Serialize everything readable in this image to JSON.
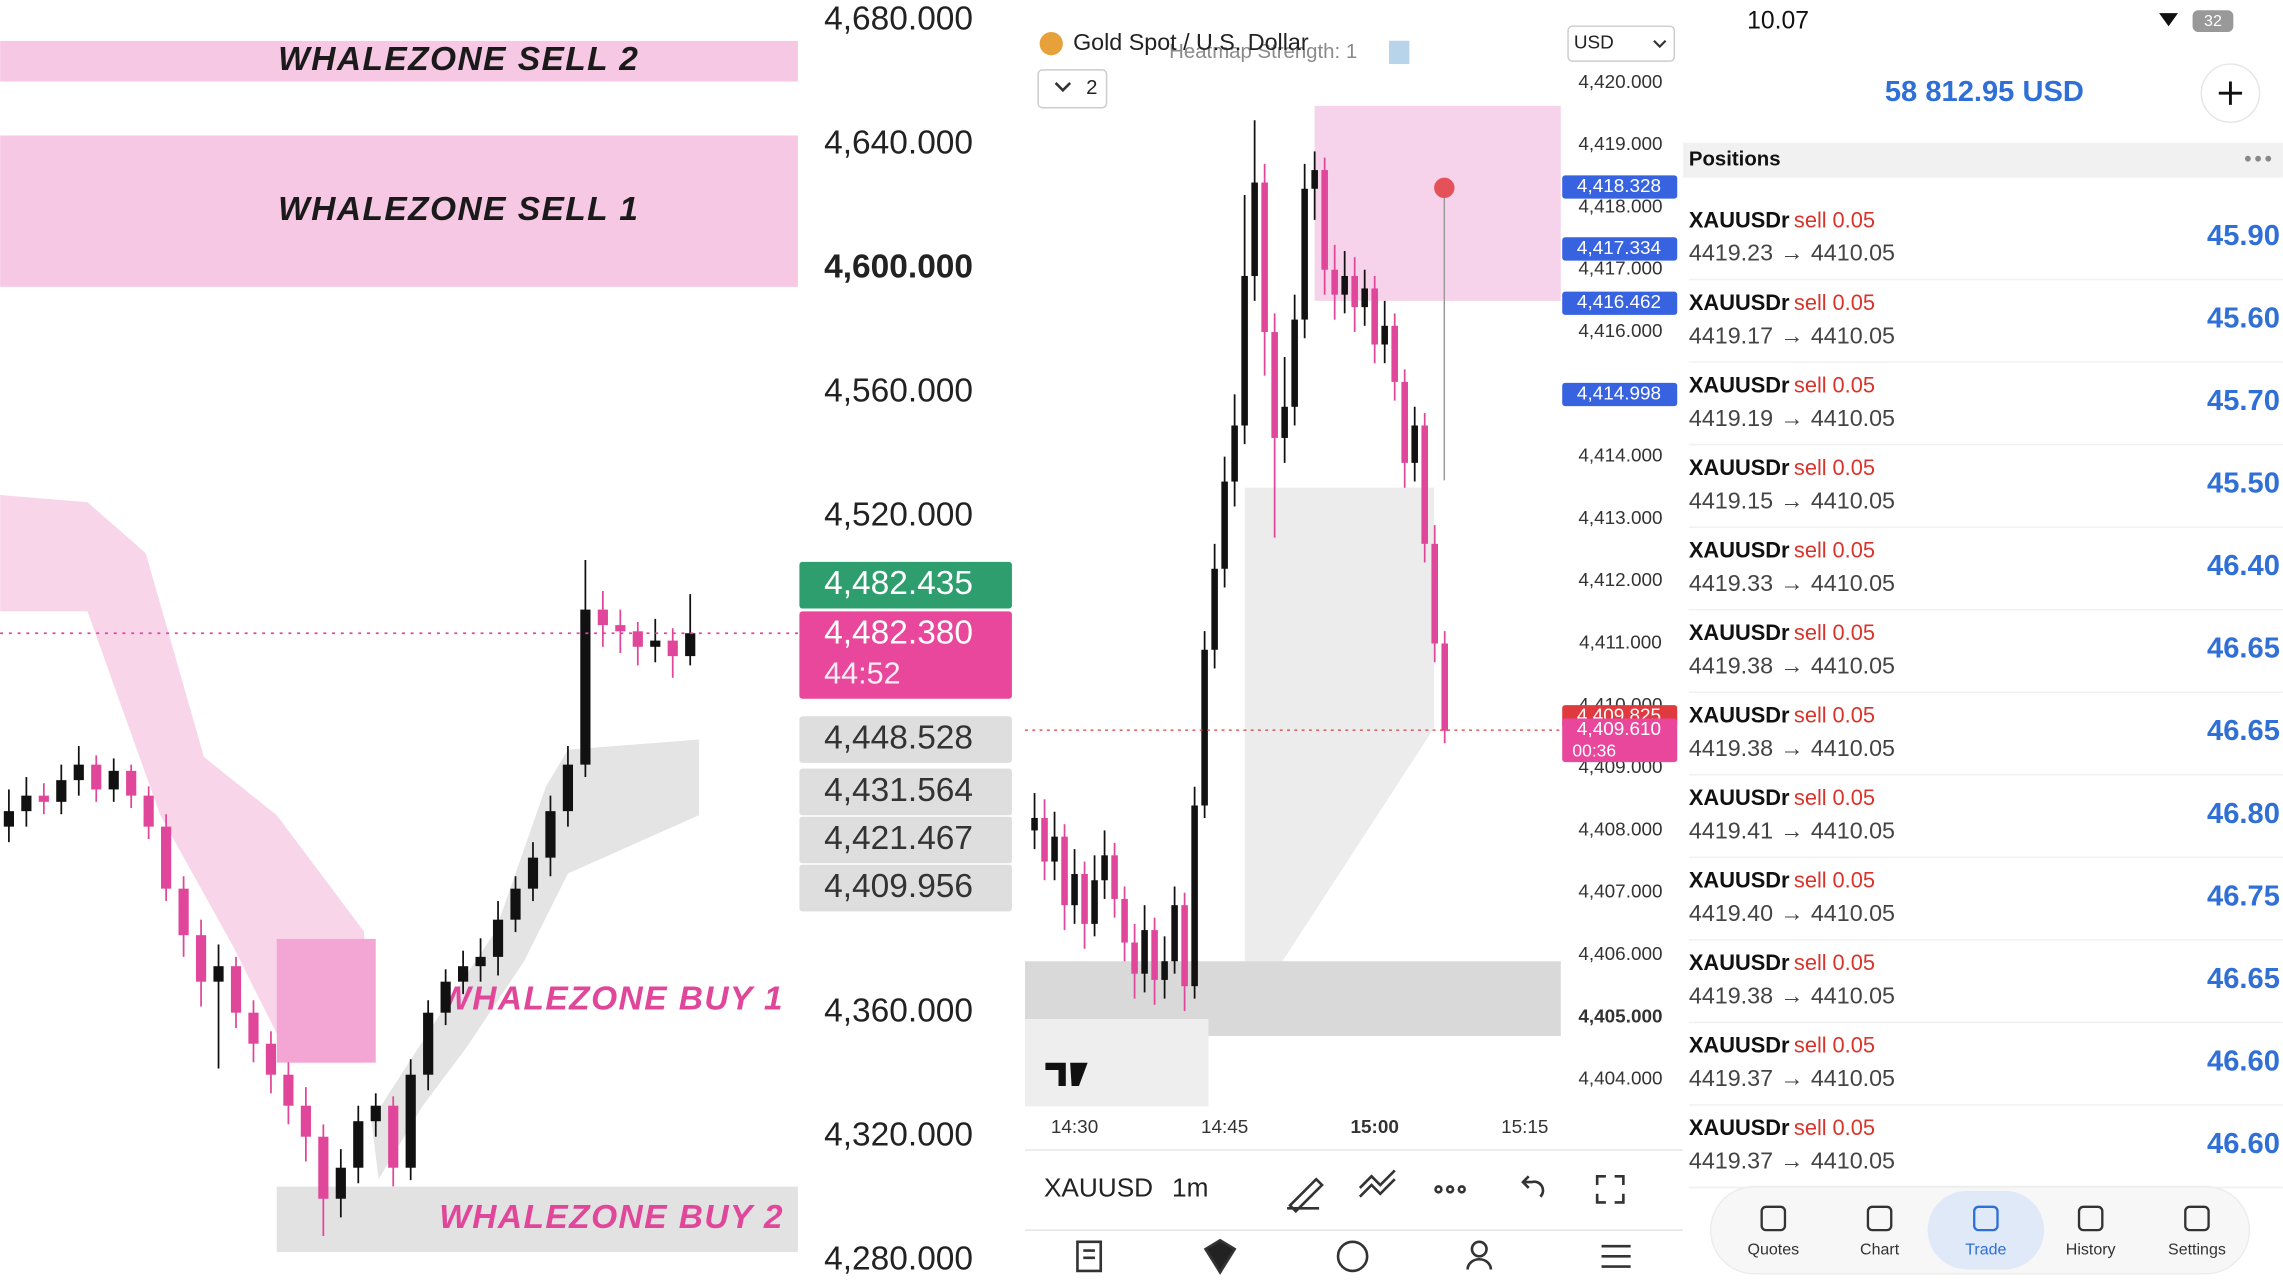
{
  "chart_data": [
    {
      "type": "candlestick",
      "ylim": [
        4272.5,
        4686.6
      ],
      "yticks": [
        {
          "value": 4680,
          "label": "4,680.000"
        },
        {
          "value": 4640,
          "label": "4,640.000"
        },
        {
          "value": 4600,
          "label": "4,600.000"
        },
        {
          "value": 4560,
          "label": "4,560.000"
        },
        {
          "value": 4520,
          "label": "4,520.000"
        },
        {
          "value": 4360,
          "label": "4,360.000"
        },
        {
          "value": 4320,
          "label": "4,320.000"
        },
        {
          "value": 4280,
          "label": "4,280.000"
        }
      ],
      "emphasized_ytick": 2,
      "up_color": "#111111",
      "down_color": "#e0479a",
      "open": [
        4420,
        4425,
        4430,
        4428,
        4435,
        4440,
        4432,
        4438,
        4430,
        4420,
        4400,
        4385,
        4370,
        4375,
        4360,
        4350,
        4340,
        4330,
        4320,
        4300,
        4310,
        4325,
        4330,
        4310,
        4340,
        4360,
        4370,
        4375,
        4378,
        4390,
        4400,
        4410,
        4425,
        4440,
        4490,
        4485,
        4483,
        4478,
        4480,
        4475
      ],
      "high": [
        4432,
        4436,
        4434,
        4440,
        4446,
        4443,
        4442,
        4440,
        4433,
        4424,
        4404,
        4390,
        4382,
        4378,
        4364,
        4354,
        4344,
        4336,
        4324,
        4316,
        4330,
        4334,
        4333,
        4345,
        4364,
        4374,
        4380,
        4384,
        4396,
        4404,
        4415,
        4430,
        4446,
        4506,
        4496,
        4490,
        4486,
        4487,
        4484,
        4495
      ],
      "low": [
        4415,
        4420,
        4424,
        4424,
        4430,
        4428,
        4428,
        4426,
        4416,
        4396,
        4378,
        4362,
        4342,
        4355,
        4344,
        4334,
        4324,
        4312,
        4288,
        4294,
        4305,
        4320,
        4304,
        4306,
        4335,
        4356,
        4366,
        4370,
        4372,
        4386,
        4396,
        4404,
        4420,
        4436,
        4478,
        4476,
        4472,
        4473,
        4468,
        4472
      ],
      "close": [
        4425,
        4430,
        4428,
        4435,
        4440,
        4432,
        4438,
        4430,
        4420,
        4400,
        4385,
        4370,
        4375,
        4360,
        4350,
        4340,
        4330,
        4320,
        4300,
        4310,
        4325,
        4330,
        4310,
        4340,
        4360,
        4370,
        4375,
        4378,
        4390,
        4400,
        4410,
        4425,
        4440,
        4490,
        4485,
        4483,
        4478,
        4480,
        4475,
        4482.38
      ],
      "zones": [
        {
          "label": "WHALEZONE SELL 2",
          "top": 4673.4,
          "bottom": 4660.3,
          "color": "#f7c8e4",
          "label_color": "#1a1a1a"
        },
        {
          "label": "WHALEZONE SELL 1",
          "top": 4642.9,
          "bottom": 4594.1,
          "color": "#f7c8e4",
          "label_color": "#1a1a1a"
        },
        {
          "label": "WHALEZONE BUY 1",
          "top": 4383.8,
          "bottom": 4343.9,
          "start": 16,
          "end": 21,
          "color": "#f3a6d3",
          "label_color": "#e0479a"
        },
        {
          "label": "WHALEZONE BUY 2",
          "top": 4303.9,
          "bottom": 4282.8,
          "start": 16,
          "color": "#e2e2e2",
          "label_color": "#e0479a"
        }
      ],
      "price_tags": [
        {
          "value": 4482.435,
          "label": "4,482.435",
          "color": "#2e9e6e",
          "text_color": "#ffffff"
        },
        {
          "value": 4482.38,
          "label": "4,482.380",
          "countdown": "44:52",
          "color": "#e8479c",
          "text_color": "#ffffff"
        },
        {
          "value": 4448.528,
          "label": "4,448.528",
          "color": "#dedede",
          "text_color": "#333333"
        },
        {
          "value": 4431.564,
          "label": "4,431.564",
          "color": "#dedede",
          "text_color": "#333333"
        },
        {
          "value": 4421.467,
          "label": "4,421.467",
          "color": "#dedede",
          "text_color": "#333333"
        },
        {
          "value": 4409.956,
          "label": "4,409.956",
          "color": "#dedede",
          "text_color": "#333333"
        }
      ]
    },
    {
      "type": "candlestick",
      "title": "Gold Spot / U.S. Dollar",
      "subtitle": "Heatmap Strength: 1",
      "currency": "USD",
      "layout_count": 2,
      "symbol": "XAUUSD",
      "interval": "1m",
      "ylim": [
        4403.57,
        4421.33
      ],
      "xlim": [
        865.05,
        918.6
      ],
      "yticks": [
        {
          "value": 4420,
          "label": "4,420.000"
        },
        {
          "value": 4419,
          "label": "4,419.000"
        },
        {
          "value": 4418,
          "label": "4,418.000"
        },
        {
          "value": 4417,
          "label": "4,417.000"
        },
        {
          "value": 4416,
          "label": "4,416.000"
        },
        {
          "value": 4415,
          "label": "4,415.000"
        },
        {
          "value": 4414,
          "label": "4,414.000"
        },
        {
          "value": 4413,
          "label": "4,413.000"
        },
        {
          "value": 4412,
          "label": "4,412.000"
        },
        {
          "value": 4411,
          "label": "4,411.000"
        },
        {
          "value": 4410,
          "label": "4,410.000"
        },
        {
          "value": 4409,
          "label": "4,409.000"
        },
        {
          "value": 4408,
          "label": "4,408.000"
        },
        {
          "value": 4407,
          "label": "4,407.000"
        },
        {
          "value": 4406,
          "label": "4,406.000"
        },
        {
          "value": 4405,
          "label": "4,405.000"
        },
        {
          "value": 4404,
          "label": "4,404.000"
        }
      ],
      "emphasized_ytick": 15,
      "xticks": [
        {
          "value": 870,
          "label": "14:30"
        },
        {
          "value": 885,
          "label": "14:45"
        },
        {
          "value": 900,
          "label": "15:00"
        },
        {
          "value": 915,
          "label": "15:15"
        }
      ],
      "emphasized_xtick": 2,
      "up_color": "#111111",
      "down_color": "#e0479a",
      "x": [
        866,
        867,
        868,
        869,
        870,
        871,
        872,
        873,
        874,
        875,
        876,
        877,
        878,
        879,
        880,
        881,
        882,
        883,
        884,
        885,
        886,
        887,
        888,
        889,
        890,
        891,
        892,
        893,
        894,
        895,
        896,
        897,
        898,
        899,
        900,
        901,
        902,
        903,
        904,
        905,
        906,
        907
      ],
      "open": [
        4408.0,
        4408.2,
        4407.5,
        4407.9,
        4406.8,
        4407.3,
        4406.5,
        4407.2,
        4407.6,
        4406.9,
        4406.2,
        4405.7,
        4406.4,
        4405.6,
        4405.9,
        4406.8,
        4405.5,
        4408.4,
        4410.9,
        4412.2,
        4413.6,
        4414.5,
        4416.9,
        4418.4,
        4416.0,
        4414.3,
        4414.8,
        4416.2,
        4418.3,
        4418.6,
        4417.0,
        4416.6,
        4416.9,
        4416.4,
        4416.7,
        4415.8,
        4416.1,
        4415.2,
        4413.9,
        4414.5,
        4412.6,
        4411.0
      ],
      "high": [
        4408.6,
        4408.5,
        4408.3,
        4408.1,
        4407.7,
        4407.5,
        4407.6,
        4408.0,
        4407.8,
        4407.1,
        4406.5,
        4406.8,
        4406.6,
        4406.3,
        4407.1,
        4407.0,
        4408.7,
        4411.2,
        4412.6,
        4414.0,
        4415.0,
        4418.2,
        4419.4,
        4418.7,
        4416.3,
        4415.6,
        4416.6,
        4418.7,
        4418.9,
        4418.8,
        4417.4,
        4417.3,
        4417.2,
        4417.0,
        4416.9,
        4416.5,
        4416.3,
        4415.4,
        4414.8,
        4414.7,
        4412.9,
        4411.2
      ],
      "low": [
        4407.7,
        4407.2,
        4407.2,
        4406.4,
        4406.5,
        4406.1,
        4406.3,
        4406.9,
        4406.6,
        4405.9,
        4405.3,
        4405.4,
        4405.2,
        4405.3,
        4405.7,
        4405.1,
        4405.3,
        4408.2,
        4410.6,
        4411.9,
        4413.2,
        4414.2,
        4416.5,
        4415.3,
        4412.7,
        4413.9,
        4414.5,
        4415.9,
        4417.8,
        4416.6,
        4416.2,
        4416.3,
        4416.0,
        4416.1,
        4415.5,
        4415.5,
        4414.9,
        4413.5,
        4413.6,
        4412.3,
        4410.7,
        4409.4
      ],
      "close": [
        4408.2,
        4407.5,
        4407.9,
        4406.8,
        4407.3,
        4406.5,
        4407.2,
        4407.6,
        4406.9,
        4406.2,
        4405.7,
        4406.4,
        4405.6,
        4405.9,
        4406.8,
        4405.5,
        4408.4,
        4410.9,
        4412.2,
        4413.6,
        4414.5,
        4416.9,
        4418.4,
        4416.0,
        4414.3,
        4414.8,
        4416.2,
        4418.3,
        4418.6,
        4417.0,
        4416.6,
        4416.9,
        4416.4,
        4416.7,
        4415.8,
        4416.1,
        4415.2,
        4413.9,
        4414.5,
        4412.6,
        4411.0,
        4409.6
      ],
      "zones": [
        {
          "top": 4419.63,
          "bottom": 4416.5,
          "start": 894,
          "color": "#f6d3ea"
        },
        {
          "top": 4405.9,
          "bottom": 4404.7,
          "color": "#d9d9d9"
        }
      ],
      "price_tags": [
        {
          "value": 4418.328,
          "label": "4,418.328",
          "color": "#3762e0"
        },
        {
          "value": 4417.334,
          "label": "4,417.334",
          "color": "#3762e0"
        },
        {
          "value": 4416.462,
          "label": "4,416.462",
          "color": "#3762e0"
        },
        {
          "value": 4414.998,
          "label": "4,414.998",
          "color": "#3762e0"
        },
        {
          "value": 4409.825,
          "label": "4,409.825",
          "color": "#e0393e"
        },
        {
          "value": 4409.61,
          "label": "4,409.610",
          "countdown": "00:36",
          "color": "#e8479c"
        }
      ]
    }
  ],
  "trade_panel": {
    "time": "10.07",
    "battery": "32",
    "balance": "58 812.95 USD",
    "section": "Positions",
    "arrow": "→",
    "positions": [
      {
        "symbol": "XAUUSDr",
        "side": "sell",
        "volume": "0.05",
        "open": "4419.23",
        "current": "4410.05",
        "profit": "45.90"
      },
      {
        "symbol": "XAUUSDr",
        "side": "sell",
        "volume": "0.05",
        "open": "4419.17",
        "current": "4410.05",
        "profit": "45.60"
      },
      {
        "symbol": "XAUUSDr",
        "side": "sell",
        "volume": "0.05",
        "open": "4419.19",
        "current": "4410.05",
        "profit": "45.70"
      },
      {
        "symbol": "XAUUSDr",
        "side": "sell",
        "volume": "0.05",
        "open": "4419.15",
        "current": "4410.05",
        "profit": "45.50"
      },
      {
        "symbol": "XAUUSDr",
        "side": "sell",
        "volume": "0.05",
        "open": "4419.33",
        "current": "4410.05",
        "profit": "46.40"
      },
      {
        "symbol": "XAUUSDr",
        "side": "sell",
        "volume": "0.05",
        "open": "4419.38",
        "current": "4410.05",
        "profit": "46.65"
      },
      {
        "symbol": "XAUUSDr",
        "side": "sell",
        "volume": "0.05",
        "open": "4419.38",
        "current": "4410.05",
        "profit": "46.65"
      },
      {
        "symbol": "XAUUSDr",
        "side": "sell",
        "volume": "0.05",
        "open": "4419.41",
        "current": "4410.05",
        "profit": "46.80"
      },
      {
        "symbol": "XAUUSDr",
        "side": "sell",
        "volume": "0.05",
        "open": "4419.40",
        "current": "4410.05",
        "profit": "46.75"
      },
      {
        "symbol": "XAUUSDr",
        "side": "sell",
        "volume": "0.05",
        "open": "4419.38",
        "current": "4410.05",
        "profit": "46.65"
      },
      {
        "symbol": "XAUUSDr",
        "side": "sell",
        "volume": "0.05",
        "open": "4419.37",
        "current": "4410.05",
        "profit": "46.60"
      },
      {
        "symbol": "XAUUSDr",
        "side": "sell",
        "volume": "0.05",
        "open": "4419.37",
        "current": "4410.05",
        "profit": "46.60"
      }
    ],
    "nav": [
      "Quotes",
      "Chart",
      "Trade",
      "History",
      "Settings"
    ],
    "active_nav": 2
  }
}
